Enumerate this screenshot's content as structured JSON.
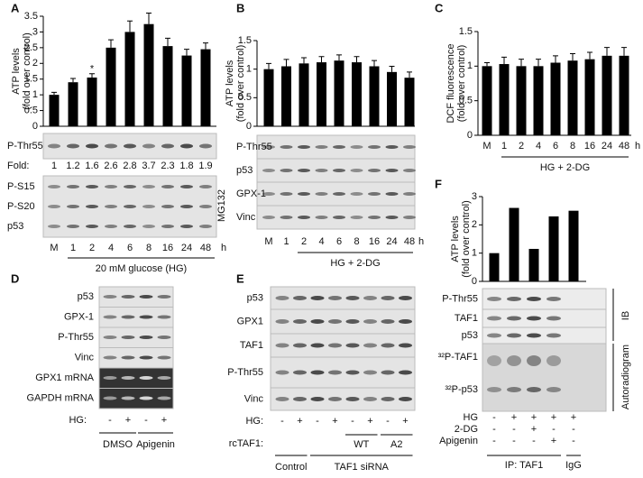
{
  "chart_data": [
    {
      "type": "bar",
      "label": "A",
      "y_label": [
        "ATP levels",
        "(fold over control)"
      ],
      "categories": [
        "M",
        "1",
        "2",
        "4",
        "6",
        "8",
        "16",
        "24",
        "48"
      ],
      "x_unit": "h",
      "x_label": "20 mM glucose (HG)",
      "values": [
        1.0,
        1.4,
        1.55,
        2.5,
        3.0,
        3.25,
        2.55,
        2.25,
        2.45
      ],
      "error": [
        0.08,
        0.12,
        0.12,
        0.25,
        0.35,
        0.35,
        0.25,
        0.2,
        0.2
      ],
      "annotation": "*",
      "color": "#000000",
      "ylim": [
        0,
        3.5
      ],
      "yticks": [
        0,
        0.5,
        1,
        1.5,
        2,
        2.5,
        3,
        3.5
      ]
    },
    {
      "type": "bar",
      "label": "B",
      "y_label": [
        "ATP levels",
        "(fold over control)"
      ],
      "categories": [
        "M",
        "1",
        "2",
        "4",
        "6",
        "8",
        "16",
        "24",
        "48"
      ],
      "x_unit": "h",
      "x_label": "HG + 2-DG",
      "values": [
        1.0,
        1.05,
        1.1,
        1.12,
        1.15,
        1.12,
        1.05,
        0.95,
        0.85
      ],
      "error": [
        0.1,
        0.12,
        0.1,
        0.1,
        0.1,
        0.1,
        0.1,
        0.1,
        0.1
      ],
      "color": "#000000",
      "ylim": [
        0,
        1.5
      ],
      "yticks": [
        0,
        0.5,
        1,
        1.5
      ]
    },
    {
      "type": "bar",
      "label": "C",
      "y_label": [
        "DCF fluorescence",
        "(fold over control)"
      ],
      "categories": [
        "M",
        "1",
        "2",
        "4",
        "6",
        "8",
        "16",
        "24",
        "48"
      ],
      "x_unit": "h",
      "x_label": "HG + 2-DG",
      "values": [
        1.0,
        1.03,
        1.0,
        1.0,
        1.05,
        1.08,
        1.1,
        1.15,
        1.15
      ],
      "error": [
        0.05,
        0.1,
        0.1,
        0.1,
        0.1,
        0.1,
        0.1,
        0.12,
        0.12
      ],
      "color": "#000000",
      "ylim": [
        0,
        1.5
      ],
      "yticks": [
        0,
        0.5,
        1,
        1.5
      ]
    },
    {
      "type": "bar",
      "label": "F",
      "y_label": [
        "ATP levels",
        "(fold over control)"
      ],
      "values": [
        1.0,
        2.6,
        1.15,
        2.3,
        2.5
      ],
      "color": "#000000",
      "ylim": [
        0,
        3
      ],
      "yticks": [
        0,
        1,
        2,
        3
      ]
    }
  ],
  "blots": {
    "A": {
      "rows": [
        "P-Thr55"
      ],
      "fold_label": "Fold:",
      "fold": [
        "1",
        "1.2",
        "1.6",
        "2.6",
        "2.8",
        "3.7",
        "2.3",
        "1.8",
        "1.9"
      ],
      "rows2": [
        "P-S15",
        "P-S20",
        "p53"
      ],
      "side": "MG132"
    },
    "B": {
      "rows": [
        "P-Thr55",
        "p53",
        "GPX-1",
        "Vinc"
      ]
    },
    "D": {
      "label": "D",
      "rows": [
        "p53",
        "GPX-1",
        "P-Thr55",
        "Vinc",
        "GPX1 mRNA",
        "GAPDH mRNA"
      ],
      "hg": "HG:",
      "signs": [
        "-",
        "+",
        "-",
        "+"
      ],
      "groups": [
        "DMSO",
        "Apigenin"
      ]
    },
    "E": {
      "label": "E",
      "rows": [
        "p53",
        "GPX1",
        "TAF1",
        "P-Thr55",
        "Vinc"
      ],
      "hg": "HG:",
      "signs": [
        "-",
        "+",
        "-",
        "+",
        "-",
        "+",
        "-",
        "+"
      ],
      "rc": "rcTAF1:",
      "rc_groups": [
        "WT",
        "A2"
      ],
      "groups": [
        "Control",
        "TAF1 siRNA"
      ]
    },
    "F": {
      "rows": [
        "P-Thr55",
        "TAF1",
        "p53"
      ],
      "side": "IB",
      "auto_rows": [
        "³²P-TAF1",
        "³²P-p53"
      ],
      "auto_side": "Autoradiogram",
      "conditions": [
        {
          "name": "HG",
          "signs": [
            "-",
            "+",
            "+",
            "+",
            "+"
          ]
        },
        {
          "name": "2-DG",
          "signs": [
            "-",
            "-",
            "+",
            "-",
            "-"
          ]
        },
        {
          "name": "Apigenin",
          "signs": [
            "-",
            "-",
            "-",
            "+",
            "-"
          ]
        }
      ],
      "groups": [
        "IP: TAF1",
        "IgG"
      ]
    }
  }
}
